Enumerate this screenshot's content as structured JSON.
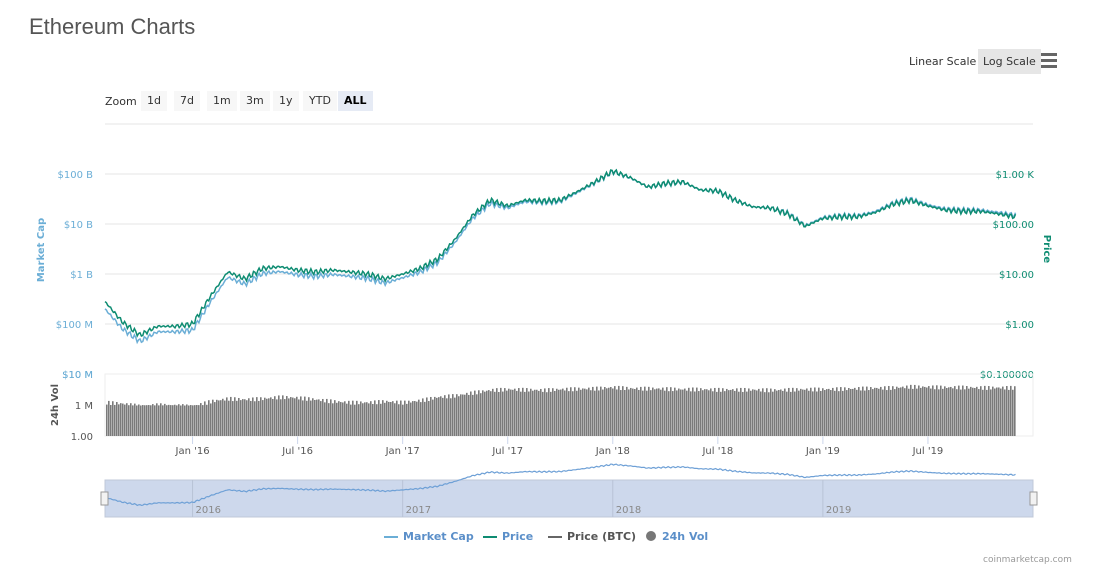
{
  "title": "Ethereum Charts",
  "scale": {
    "linear": "Linear Scale",
    "log": "Log Scale",
    "selected": "log"
  },
  "zoom": {
    "label": "Zoom",
    "buttons": [
      "1d",
      "7d",
      "1m",
      "3m",
      "1y",
      "YTD",
      "ALL"
    ],
    "selected": "ALL"
  },
  "legend": [
    {
      "label": "Market Cap",
      "color": "#6baed6"
    },
    {
      "label": "Price",
      "color": "#0e8c72"
    },
    {
      "label": "Price (BTC)",
      "color": "#666666"
    },
    {
      "label": "24h Vol",
      "color": "#777777"
    }
  ],
  "credit": "coinmarketcap.com",
  "chart_data": {
    "type": "line",
    "x_start": "2015-08",
    "x_end": "2020-01",
    "x_ticks": [
      "Jan '16",
      "Jul '16",
      "Jan '17",
      "Jul '17",
      "Jan '18",
      "Jul '18",
      "Jan '19",
      "Jul '19"
    ],
    "navigator_ticks": [
      "2016",
      "2017",
      "2018",
      "2019"
    ],
    "y_left": {
      "label": "Market Cap",
      "ticks": [
        "$10 M",
        "$100 M",
        "$1 B",
        "$10 B",
        "$100 B"
      ],
      "scale": "log",
      "range": [
        10000000.0,
        1000000000000.0
      ]
    },
    "y_right": {
      "label": "Price",
      "ticks": [
        "$0.100000",
        "$1.00",
        "$10.00",
        "$100.00",
        "$1.00 K"
      ],
      "scale": "log",
      "range": [
        0.1,
        10000
      ]
    },
    "volume_axis": {
      "label": "24h Vol",
      "ticks": [
        "1.00",
        "1 M",
        "$10 M"
      ]
    },
    "dates": [
      "2015-08",
      "2015-09",
      "2015-10",
      "2015-11",
      "2015-12",
      "2016-01",
      "2016-02",
      "2016-03",
      "2016-04",
      "2016-05",
      "2016-06",
      "2016-07",
      "2016-08",
      "2016-09",
      "2016-10",
      "2016-11",
      "2016-12",
      "2017-01",
      "2017-02",
      "2017-03",
      "2017-04",
      "2017-05",
      "2017-06",
      "2017-07",
      "2017-08",
      "2017-09",
      "2017-10",
      "2017-11",
      "2017-12",
      "2018-01",
      "2018-02",
      "2018-03",
      "2018-04",
      "2018-05",
      "2018-06",
      "2018-07",
      "2018-08",
      "2018-09",
      "2018-10",
      "2018-11",
      "2018-12",
      "2019-01",
      "2019-02",
      "2019-03",
      "2019-04",
      "2019-05",
      "2019-06",
      "2019-07",
      "2019-08",
      "2019-09",
      "2019-10",
      "2019-11",
      "2019-12"
    ],
    "series": [
      {
        "name": "Price",
        "unit": "USD",
        "values": [
          2.8,
          1.1,
          0.6,
          0.9,
          0.9,
          1.0,
          3.5,
          11,
          8,
          13,
          14,
          12,
          11,
          12,
          11,
          10,
          8,
          10,
          13,
          20,
          50,
          150,
          300,
          230,
          300,
          290,
          300,
          450,
          700,
          1150,
          850,
          550,
          650,
          700,
          480,
          460,
          300,
          220,
          210,
          160,
          90,
          130,
          140,
          140,
          170,
          250,
          300,
          230,
          190,
          180,
          180,
          160,
          140
        ]
      },
      {
        "name": "Market Cap",
        "unit": "USD billions",
        "values": [
          0.2,
          0.08,
          0.045,
          0.07,
          0.07,
          0.075,
          0.27,
          0.86,
          0.63,
          1.03,
          1.12,
          0.97,
          0.9,
          0.98,
          0.9,
          0.82,
          0.66,
          0.84,
          1.1,
          1.7,
          4.3,
          13,
          26,
          21,
          28,
          27.5,
          28.5,
          43,
          68,
          113,
          84,
          55,
          64,
          69,
          48,
          46,
          30,
          22,
          21,
          16.5,
          9.3,
          13.5,
          14.6,
          14.6,
          17.8,
          26.2,
          31.5,
          24.2,
          20,
          19,
          19,
          17.1,
          15
        ]
      },
      {
        "name": "24h Vol",
        "unit": "USD",
        "values": [
          1200000.0,
          1100000.0,
          900000.0,
          1000000.0,
          950000.0,
          900000.0,
          1300000.0,
          1600000.0,
          1500000.0,
          1600000.0,
          1800000.0,
          1700000.0,
          1500000.0,
          1300000.0,
          1200000.0,
          1200000.0,
          1300000.0,
          1200000.0,
          1400000.0,
          1800000.0,
          2000000.0,
          2500000.0,
          3000000.0,
          3200000.0,
          3100000.0,
          3000000.0,
          3200000.0,
          3300000.0,
          3400000.0,
          3700000.0,
          3400000.0,
          3400000.0,
          3300000.0,
          3200000.0,
          3200000.0,
          3100000.0,
          3100000.0,
          3100000.0,
          3000000.0,
          3100000.0,
          3200000.0,
          3200000.0,
          3300000.0,
          3400000.0,
          3500000.0,
          3600000.0,
          3900000.0,
          3800000.0,
          3700000.0,
          3700000.0,
          3600000.0,
          3600000.0,
          3600000.0
        ]
      }
    ]
  }
}
